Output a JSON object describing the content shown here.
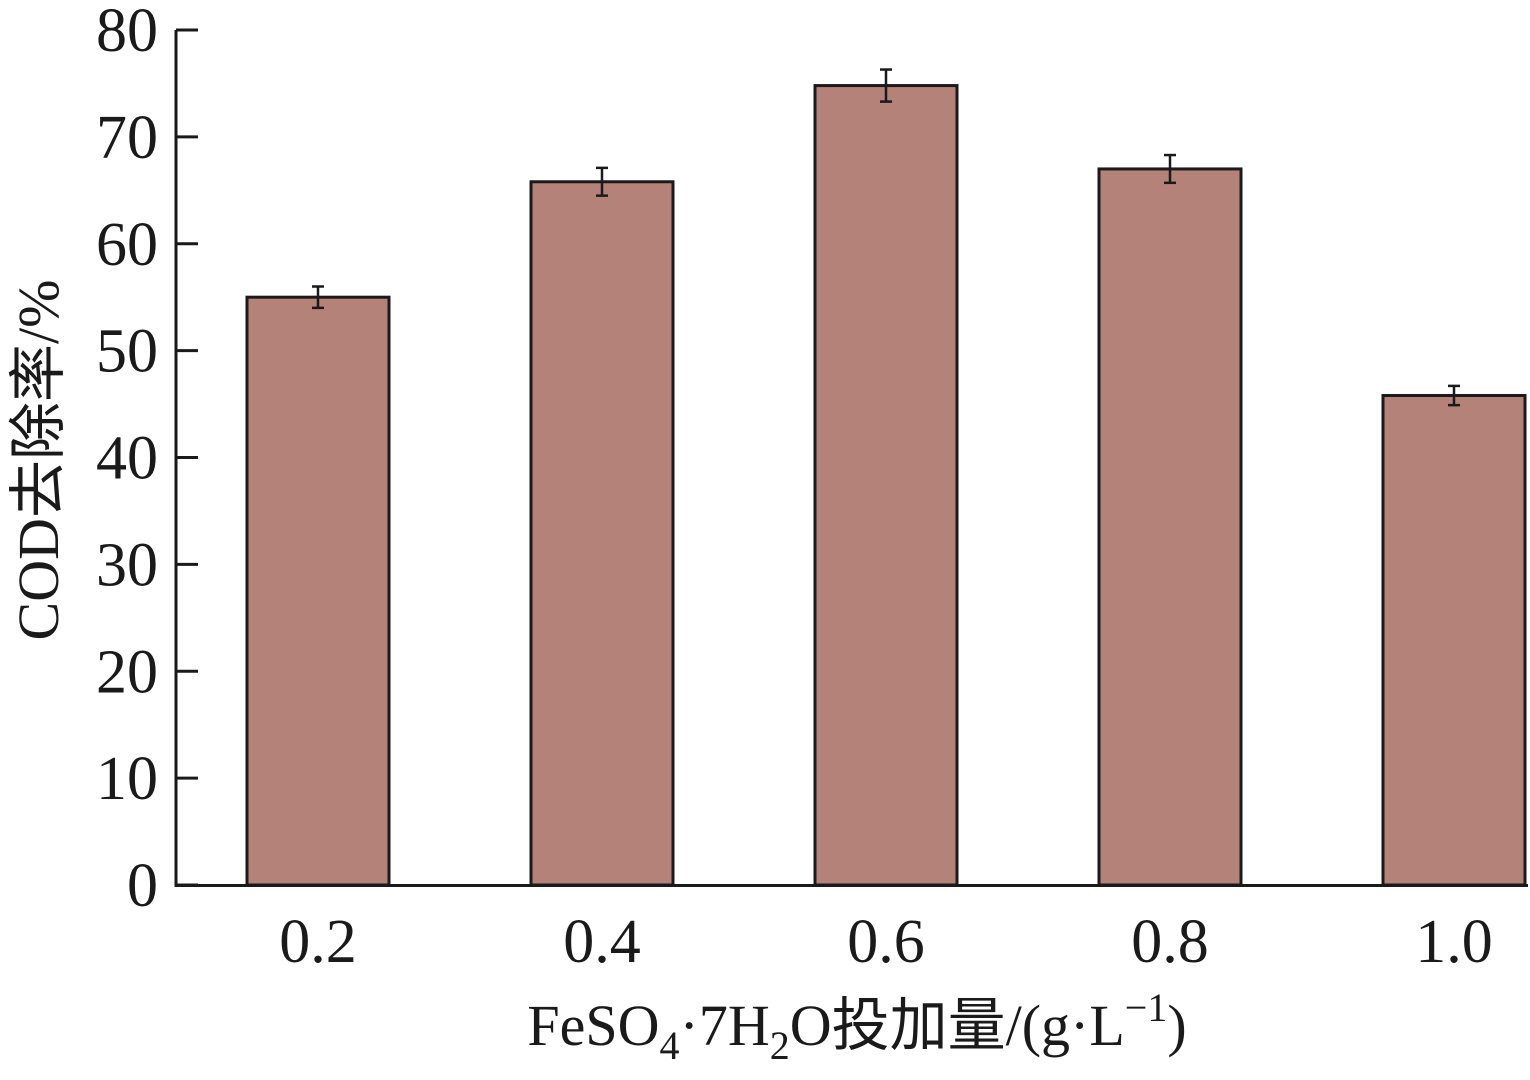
{
  "chart_data": {
    "type": "bar",
    "categories": [
      "0.2",
      "0.4",
      "0.6",
      "0.8",
      "1.0"
    ],
    "values": [
      55.0,
      65.8,
      74.8,
      67.0,
      45.8
    ],
    "errors": [
      1.0,
      1.3,
      1.5,
      1.3,
      0.9
    ],
    "ylim": [
      0,
      80
    ],
    "yticks": [
      "0",
      "10",
      "20",
      "30",
      "40",
      "50",
      "60",
      "70",
      "80"
    ],
    "ylabel": "COD去除率/%",
    "xlabel": {
      "part1": "FeSO",
      "sub1": "4",
      "part2": "·7H",
      "sub2": "2",
      "part3": "O投加量/(g·L",
      "sup": "−1",
      "part4": ")"
    },
    "bar_color": "#b5827a",
    "grid": false,
    "legend": "none"
  }
}
